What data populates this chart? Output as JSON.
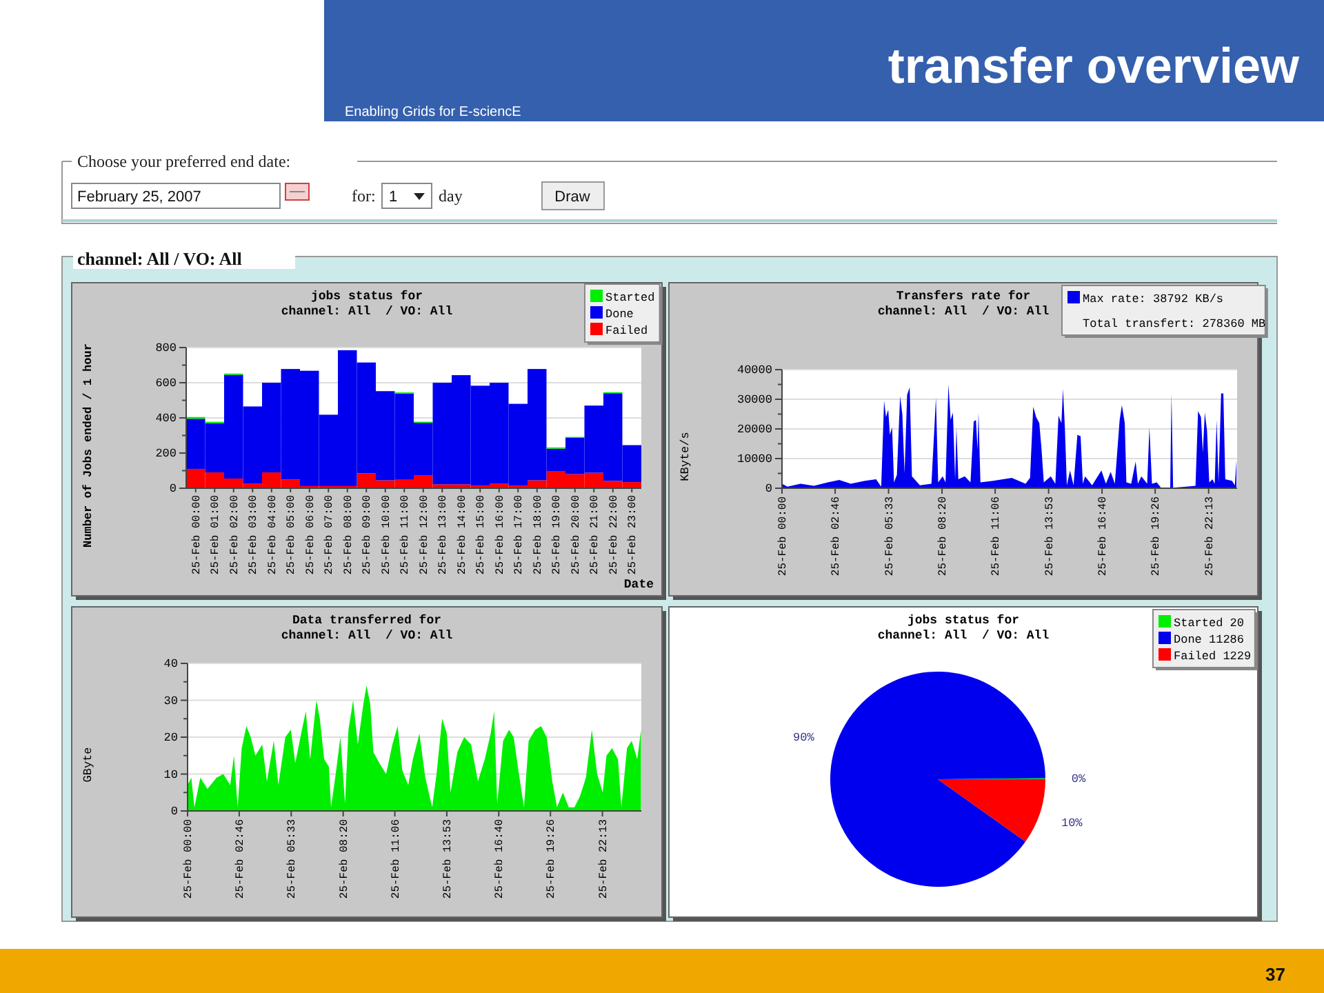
{
  "chart_data": [
    {
      "type": "other",
      "title": "transfer overview",
      "annotations": [
        "Enabling Grids for E-sciencE",
        "Choose your preferred end date:",
        "February 25, 2007",
        "for:",
        "1",
        "day",
        "Draw",
        "channel: All / VO: All",
        "37"
      ]
    },
    {
      "type": "bar",
      "title": "jobs status for",
      "subtitle": "channel: All  / VO: All",
      "ylabel": "Number of Jobs ended / 1 hour",
      "xlabel": "Date",
      "stacked": true,
      "grid": "y",
      "legend": "top right",
      "categories": [
        "25-Feb 00:00",
        "25-Feb 01:00",
        "25-Feb 02:00",
        "25-Feb 03:00",
        "25-Feb 04:00",
        "25-Feb 05:00",
        "25-Feb 06:00",
        "25-Feb 07:00",
        "25-Feb 08:00",
        "25-Feb 09:00",
        "25-Feb 10:00",
        "25-Feb 11:00",
        "25-Feb 12:00",
        "25-Feb 13:00",
        "25-Feb 14:00",
        "25-Feb 15:00",
        "25-Feb 16:00",
        "25-Feb 17:00",
        "25-Feb 18:00",
        "25-Feb 19:00",
        "25-Feb 20:00",
        "25-Feb 21:00",
        "25-Feb 22:00",
        "25-Feb 23:00"
      ],
      "ylim": [
        0,
        800
      ],
      "yticks": [
        0,
        {
          "value": 100,
          "label": null
        },
        200,
        {
          "value": 300,
          "label": null
        },
        400,
        {
          "value": 500,
          "label": null
        },
        600,
        {
          "value": 700,
          "label": null
        },
        800
      ],
      "series": [
        {
          "name": "Failed",
          "color": "#ff0000",
          "values": [
            110,
            90,
            55,
            25,
            90,
            50,
            12,
            12,
            12,
            85,
            45,
            48,
            72,
            22,
            22,
            15,
            25,
            15,
            45,
            98,
            80,
            88,
            42,
            35
          ]
        },
        {
          "name": "Done",
          "color": "#0000ee",
          "values": [
            285,
            280,
            590,
            440,
            510,
            628,
            656,
            406,
            773,
            630,
            507,
            490,
            300,
            578,
            621,
            568,
            575,
            465,
            633,
            127,
            208,
            382,
            498,
            210
          ]
        },
        {
          "name": "Started",
          "color": "#00ee00",
          "values": [
            10,
            8,
            7,
            0,
            0,
            null,
            0,
            0,
            0,
            0,
            0,
            7,
            6,
            0,
            0,
            0,
            0,
            0,
            0,
            7,
            4,
            0,
            6,
            0
          ]
        }
      ]
    },
    {
      "type": "area",
      "title": "Transfers rate for",
      "subtitle": "channel: All  / VO: All",
      "ylabel": "KByte/s",
      "grid": "y",
      "legend": "top right",
      "annotations": [
        "Total transfert: 278360 MB"
      ],
      "xlim": [
        "2007-02-25T00:00",
        "2007-02-25T23:42"
      ],
      "xticks": [
        {
          "value": "2007-02-25T00:00",
          "label": "25-Feb 00:00"
        },
        {
          "value": "2007-02-25T02:46",
          "label": "25-Feb 02:46"
        },
        {
          "value": "2007-02-25T05:33",
          "label": "25-Feb 05:33"
        },
        {
          "value": "2007-02-25T08:20",
          "label": "25-Feb 08:20"
        },
        {
          "value": "2007-02-25T11:06",
          "label": "25-Feb 11:06"
        },
        {
          "value": "2007-02-25T13:53",
          "label": "25-Feb 13:53"
        },
        {
          "value": "2007-02-25T16:40",
          "label": "25-Feb 16:40"
        },
        {
          "value": "2007-02-25T19:26",
          "label": "25-Feb 19:26"
        },
        {
          "value": "2007-02-25T22:13",
          "label": "25-Feb 22:13"
        }
      ],
      "ylim": [
        0,
        40000
      ],
      "yticks": [
        0,
        {
          "value": 5000,
          "label": null
        },
        10000,
        {
          "value": 15000,
          "label": null
        },
        20000,
        {
          "value": 25000,
          "label": null
        },
        30000,
        {
          "value": 35000,
          "label": null
        },
        40000
      ],
      "x": [
        "2007-02-25T00:00",
        "2007-02-25T00:17",
        "2007-02-25T00:58",
        "2007-02-25T01:40",
        "2007-02-25T02:23",
        "2007-02-25T02:59",
        "2007-02-25T03:35",
        "2007-02-25T04:19",
        "2007-02-25T04:54",
        "2007-02-25T05:10",
        "2007-02-25T05:19",
        "2007-02-25T05:25",
        "2007-02-25T05:32",
        "2007-02-25T05:37",
        "2007-02-25T05:44",
        "2007-02-25T05:50",
        "2007-02-25T05:59",
        "2007-02-25T06:09",
        "2007-02-25T06:16",
        "2007-02-25T06:23",
        "2007-02-25T06:31",
        "2007-02-25T06:39",
        "2007-02-25T06:46",
        "2007-02-25T07:11",
        "2007-02-25T07:47",
        "2007-02-25T08:01",
        "2007-02-25T08:08",
        "2007-02-25T08:22",
        "2007-02-25T08:31",
        "2007-02-25T08:40",
        "2007-02-25T08:47",
        "2007-02-25T08:54",
        "2007-02-25T09:01",
        "2007-02-25T09:05",
        "2007-02-25T09:11",
        "2007-02-25T09:31",
        "2007-02-25T09:49",
        "2007-02-25T09:59",
        "2007-02-25T10:06",
        "2007-02-25T10:11",
        "2007-02-25T10:14",
        "2007-02-25T10:20",
        "2007-02-25T11:00",
        "2007-02-25T11:58",
        "2007-02-25T12:41",
        "2007-02-25T12:55",
        "2007-02-25T13:05",
        "2007-02-25T13:14",
        "2007-02-25T13:24",
        "2007-02-25T13:31",
        "2007-02-25T13:38",
        "2007-02-25T14:00",
        "2007-02-25T14:14",
        "2007-02-25T14:24",
        "2007-02-25T14:33",
        "2007-02-25T14:38",
        "2007-02-25T14:44",
        "2007-02-25T14:50",
        "2007-02-25T15:00",
        "2007-02-25T15:11",
        "2007-02-25T15:23",
        "2007-02-25T15:33",
        "2007-02-25T15:40",
        "2007-02-25T15:47",
        "2007-02-25T16:09",
        "2007-02-25T16:38",
        "2007-02-25T16:52",
        "2007-02-25T17:07",
        "2007-02-25T17:20",
        "2007-02-25T17:35",
        "2007-02-25T17:42",
        "2007-02-25T17:51",
        "2007-02-25T17:56",
        "2007-02-25T18:11",
        "2007-02-25T18:25",
        "2007-02-25T18:32",
        "2007-02-25T18:43",
        "2007-02-25T19:01",
        "2007-02-25T19:08",
        "2007-02-25T19:16",
        "2007-02-25T19:31",
        "2007-02-25T19:44",
        "2007-02-25T20:13",
        "2007-02-25T20:17",
        "2007-02-25T20:22",
        "2007-02-25T21:03",
        "2007-02-25T21:32",
        "2007-02-25T21:40",
        "2007-02-25T21:49",
        "2007-02-25T21:55",
        "2007-02-25T22:01",
        "2007-02-25T22:08",
        "2007-02-25T22:15",
        "2007-02-25T22:25",
        "2007-02-25T22:32",
        "2007-02-25T22:38",
        "2007-02-25T22:44",
        "2007-02-25T22:52",
        "2007-02-25T22:59",
        "2007-02-25T23:05",
        "2007-02-25T23:26",
        "2007-02-25T23:35",
        "2007-02-25T23:40"
      ],
      "series": [
        {
          "name": "Max rate: 38792 KB/s",
          "color": "#0000ee",
          "values": [
            1500,
            500,
            1500,
            800,
            2000,
            2800,
            1500,
            2500,
            3000,
            500,
            29500,
            24000,
            26500,
            18000,
            20500,
            2000,
            4500,
            31000,
            25000,
            5000,
            31500,
            34000,
            4000,
            1000,
            1500,
            30500,
            2000,
            4000,
            2000,
            35000,
            23000,
            25500,
            3000,
            20500,
            3000,
            4000,
            2000,
            22500,
            23000,
            13000,
            25500,
            2000,
            2500,
            3500,
            1500,
            3500,
            27500,
            24000,
            22000,
            13000,
            2000,
            4000,
            1500,
            24500,
            22000,
            33500,
            20000,
            1000,
            6000,
            1000,
            18000,
            17500,
            1500,
            4000,
            1000,
            6000,
            1500,
            5500,
            1500,
            23000,
            28000,
            22000,
            2000,
            1500,
            9000,
            1500,
            4000,
            1500,
            20500,
            1500,
            2000,
            200,
            200,
            32000,
            200,
            500,
            800,
            26000,
            24000,
            12000,
            25500,
            19500,
            2000,
            3000,
            1500,
            23000,
            2000,
            32000,
            32000,
            3000,
            2500,
            1000,
            9500
          ]
        }
      ]
    },
    {
      "type": "area",
      "title": "Data transferred for",
      "subtitle": "channel: All  / VO: All",
      "ylabel": "GByte",
      "grid": "y",
      "xlim": [
        "2007-02-25T00:00",
        "2007-02-26T00:18"
      ],
      "xticks": [
        {
          "value": "2007-02-25T00:00",
          "label": "25-Feb 00:00"
        },
        {
          "value": "2007-02-25T02:46",
          "label": "25-Feb 02:46"
        },
        {
          "value": "2007-02-25T05:33",
          "label": "25-Feb 05:33"
        },
        {
          "value": "2007-02-25T08:20",
          "label": "25-Feb 08:20"
        },
        {
          "value": "2007-02-25T11:06",
          "label": "25-Feb 11:06"
        },
        {
          "value": "2007-02-25T13:53",
          "label": "25-Feb 13:53"
        },
        {
          "value": "2007-02-25T16:40",
          "label": "25-Feb 16:40"
        },
        {
          "value": "2007-02-25T19:26",
          "label": "25-Feb 19:26"
        },
        {
          "value": "2007-02-25T22:13",
          "label": "25-Feb 22:13"
        }
      ],
      "ylim": [
        0,
        40
      ],
      "yticks": [
        0,
        {
          "value": 5,
          "label": null
        },
        10,
        {
          "value": 15,
          "label": null
        },
        20,
        {
          "value": 25,
          "label": null
        },
        30,
        {
          "value": 35,
          "label": null
        },
        40
      ],
      "x": [
        "2007-02-25T00:00",
        "2007-02-25T00:12",
        "2007-02-25T00:22",
        "2007-02-25T00:41",
        "2007-02-25T01:04",
        "2007-02-25T01:33",
        "2007-02-25T01:55",
        "2007-02-25T02:17",
        "2007-02-25T02:29",
        "2007-02-25T02:41",
        "2007-02-25T02:54",
        "2007-02-25T03:09",
        "2007-02-25T03:23",
        "2007-02-25T03:38",
        "2007-02-25T04:00",
        "2007-02-25T04:15",
        "2007-02-25T04:37",
        "2007-02-25T04:52",
        "2007-02-25T05:14",
        "2007-02-25T05:32",
        "2007-02-25T05:46",
        "2007-02-25T06:05",
        "2007-02-25T06:20",
        "2007-02-25T06:34",
        "2007-02-25T06:54",
        "2007-02-25T07:05",
        "2007-02-25T07:19",
        "2007-02-25T07:34",
        "2007-02-25T07:41",
        "2007-02-25T07:56",
        "2007-02-25T08:11",
        "2007-02-25T08:26",
        "2007-02-25T08:37",
        "2007-02-25T08:52",
        "2007-02-25T09:07",
        "2007-02-25T09:25",
        "2007-02-25T09:35",
        "2007-02-25T09:47",
        "2007-02-25T09:57",
        "2007-02-25T10:16",
        "2007-02-25T10:38",
        "2007-02-25T10:58",
        "2007-02-25T11:15",
        "2007-02-25T11:30",
        "2007-02-25T11:49",
        "2007-02-25T12:04",
        "2007-02-25T12:25",
        "2007-02-25T12:44",
        "2007-02-25T13:06",
        "2007-02-25T13:20",
        "2007-02-25T13:38",
        "2007-02-25T13:53",
        "2007-02-25T14:05",
        "2007-02-25T14:27",
        "2007-02-25T14:49",
        "2007-02-25T15:11",
        "2007-02-25T15:33",
        "2007-02-25T15:55",
        "2007-02-25T16:14",
        "2007-02-25T16:25",
        "2007-02-25T16:35",
        "2007-02-25T16:54",
        "2007-02-25T17:13",
        "2007-02-25T17:28",
        "2007-02-25T17:43",
        "2007-02-25T18:01",
        "2007-02-25T18:16",
        "2007-02-25T18:37",
        "2007-02-25T18:56",
        "2007-02-25T19:14",
        "2007-02-25T19:32",
        "2007-02-25T19:47",
        "2007-02-25T20:06",
        "2007-02-25T20:25",
        "2007-02-25T20:43",
        "2007-02-25T21:01",
        "2007-02-25T21:20",
        "2007-02-25T21:39",
        "2007-02-25T21:56",
        "2007-02-25T22:14",
        "2007-02-25T22:26",
        "2007-02-25T22:44",
        "2007-02-25T23:03",
        "2007-02-25T23:14",
        "2007-02-25T23:32",
        "2007-02-25T23:47",
        "2007-02-26T00:05",
        "2007-02-26T00:17"
      ],
      "series": [
        {
          "color": "#00ee00",
          "values": [
            7,
            9,
            1,
            9,
            6,
            9,
            10,
            7,
            15,
            1,
            17,
            23,
            20,
            15,
            18,
            8,
            19,
            7,
            20,
            22,
            13,
            21,
            27,
            14,
            30,
            25,
            14,
            12,
            1,
            10,
            20,
            2,
            22,
            30,
            18,
            29,
            34,
            29,
            16,
            13,
            10,
            18,
            23,
            11,
            7,
            14,
            21,
            9,
            1,
            10,
            25,
            21,
            5,
            16,
            20,
            18,
            8,
            14,
            21,
            27,
            2,
            19,
            22,
            20,
            11,
            1,
            19,
            22,
            23,
            20,
            8,
            1,
            5,
            1,
            1,
            4,
            9,
            22,
            10,
            5,
            15,
            17,
            14,
            1,
            17,
            19,
            14,
            22
          ]
        }
      ]
    },
    {
      "type": "pie",
      "title": "jobs status for",
      "subtitle": "channel: All  / VO: All",
      "legend": "top right",
      "categories": [
        "Started 20",
        "Done 11286",
        "Failed 1229"
      ],
      "values": [
        0.16,
        89.99,
        9.85
      ],
      "colors": [
        "#00ee00",
        "#0000ee",
        "#ff0000"
      ],
      "value_labels": [
        "0%",
        "90%",
        "10%"
      ]
    }
  ]
}
